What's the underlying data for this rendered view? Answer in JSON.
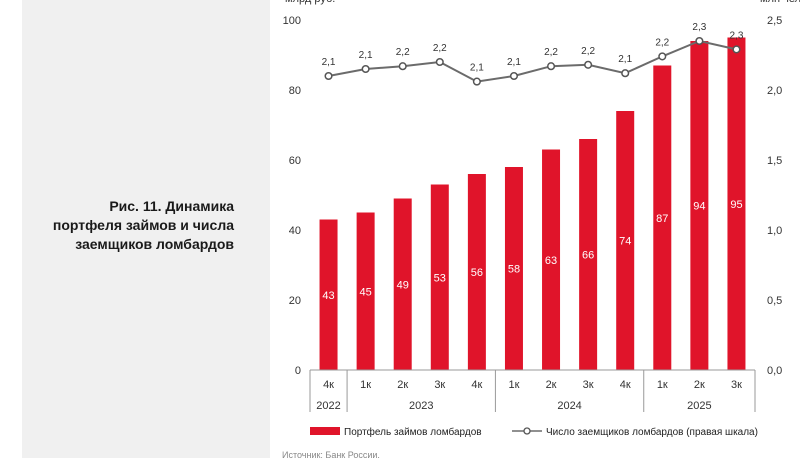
{
  "caption": {
    "line1": "Рис. 11. Динамика",
    "line2": "портфеля займов и числа",
    "line3": "заемщиков ломбардов"
  },
  "chart_data": {
    "type": "bar+line",
    "categories": [
      "4к",
      "1к",
      "2к",
      "3к",
      "4к",
      "1к",
      "2к",
      "3к",
      "4к",
      "1к",
      "2к",
      "3к"
    ],
    "years": [
      {
        "label": "2022",
        "from": 0,
        "to": 0
      },
      {
        "label": "2023",
        "from": 1,
        "to": 4
      },
      {
        "label": "2024",
        "from": 5,
        "to": 8
      },
      {
        "label": "2025",
        "from": 9,
        "to": 11
      }
    ],
    "series": [
      {
        "name": "Портфель займов ломбардов",
        "type": "bar",
        "axis": "left",
        "color": "#e0142a",
        "values": [
          43,
          45,
          49,
          53,
          56,
          58,
          63,
          66,
          74,
          87,
          94,
          95
        ],
        "labels": [
          "43",
          "45",
          "49",
          "53",
          "56",
          "58",
          "63",
          "66",
          "74",
          "87",
          "94",
          "95"
        ]
      },
      {
        "name": "Число заемщиков ломбардов (правая шкала)",
        "type": "line",
        "axis": "right",
        "color": "#6b6b6b",
        "values": [
          2.1,
          2.15,
          2.17,
          2.2,
          2.06,
          2.1,
          2.17,
          2.18,
          2.12,
          2.24,
          2.35,
          2.29
        ],
        "labels": [
          "2,1",
          "2,1",
          "2,2",
          "2,2",
          "2,1",
          "2,1",
          "2,2",
          "2,2",
          "2,1",
          "2,2",
          "2,3",
          "2,3"
        ]
      }
    ],
    "ylim_left": [
      0,
      100
    ],
    "ylim_right": [
      0,
      2.5
    ],
    "yticks_left": [
      "0",
      "20",
      "40",
      "60",
      "80",
      "100"
    ],
    "yticks_right": [
      "0,0",
      "0,5",
      "1,0",
      "1,5",
      "2,0",
      "2,5"
    ],
    "ylabel_left": "млрд руб.",
    "ylabel_right": "млн чел."
  },
  "source": "Источник: Банк России."
}
